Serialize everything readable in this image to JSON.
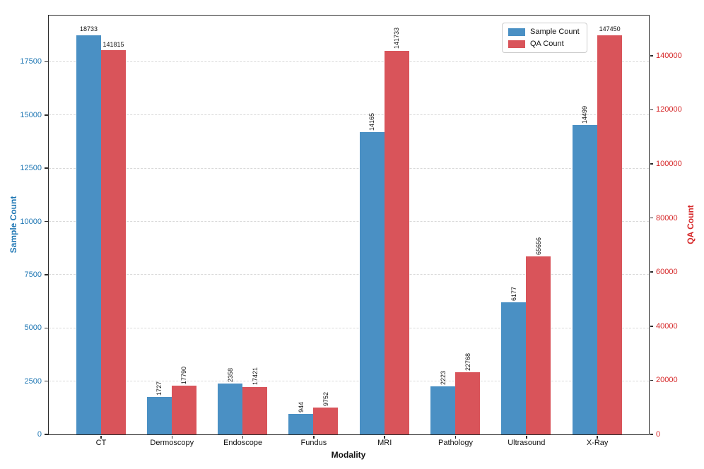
{
  "chart_data": {
    "type": "bar",
    "title": "",
    "xlabel": "Modality",
    "ylabel_left": "Sample Count",
    "ylabel_right": "QA Count",
    "categories": [
      "CT",
      "Dermoscopy",
      "Endoscope",
      "Fundus",
      "MRI",
      "Pathology",
      "Ultrasound",
      "X-Ray"
    ],
    "series": [
      {
        "name": "Sample Count",
        "axis": "left",
        "color": "#4a90c4",
        "values": [
          18733,
          1727,
          2358,
          944,
          14165,
          2223,
          6177,
          14499
        ],
        "value_label_rotated": [
          false,
          true,
          true,
          true,
          true,
          true,
          true,
          true
        ]
      },
      {
        "name": "QA Count",
        "axis": "right",
        "color": "#d9545a",
        "values": [
          141815,
          17790,
          17421,
          9752,
          141733,
          22768,
          65656,
          147450
        ],
        "value_label_rotated": [
          false,
          true,
          true,
          true,
          true,
          true,
          true,
          false
        ]
      }
    ],
    "left_axis": {
      "ticks": [
        0,
        2500,
        5000,
        7500,
        10000,
        12500,
        15000,
        17500
      ],
      "range": [
        0,
        19670
      ],
      "text_color": "#1f77b4"
    },
    "right_axis": {
      "ticks": [
        0,
        20000,
        40000,
        60000,
        80000,
        100000,
        120000,
        140000
      ],
      "range": [
        0,
        154822
      ],
      "text_color": "#d62728"
    },
    "grid": true,
    "legend_position": "upper-right"
  }
}
